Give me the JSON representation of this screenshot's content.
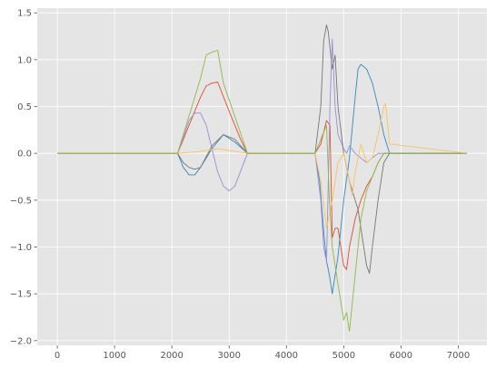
{
  "chart_data": {
    "type": "line",
    "title": "",
    "xlabel": "",
    "ylabel": "",
    "xlim": [
      -350,
      7500
    ],
    "ylim": [
      -2.05,
      1.55
    ],
    "xticks": [
      0,
      1000,
      2000,
      3000,
      4000,
      5000,
      6000,
      7000
    ],
    "yticks": [
      1.5,
      1.0,
      0.5,
      0.0,
      -0.5,
      -1.0,
      -1.5,
      -2.0
    ],
    "xtick_labels": [
      "0",
      "1000",
      "2000",
      "3000",
      "4000",
      "5000",
      "6000",
      "7000"
    ],
    "ytick_labels": [
      "1.5",
      "1.0",
      "0.5",
      "0.0",
      "−0.5",
      "−1.0",
      "−1.5",
      "−2.0"
    ],
    "grid": true,
    "style": {
      "background": "#e5e5e5",
      "grid_color": "#ffffff",
      "tick_color": "#555555"
    },
    "series": [
      {
        "color": "#e24a33",
        "x": [
          0,
          2100,
          2300,
          2500,
          2600,
          2700,
          2800,
          3000,
          3200,
          3320,
          4500,
          4600,
          4700,
          4760,
          4800,
          4850,
          4900,
          5000,
          5050,
          5100,
          5200,
          5300,
          5400,
          5500,
          5600,
          5700,
          5800,
          7150
        ],
        "y": [
          0,
          0,
          0.3,
          0.6,
          0.72,
          0.75,
          0.76,
          0.45,
          0.15,
          0,
          0,
          0.1,
          0.35,
          0.3,
          -0.9,
          -0.8,
          -0.8,
          -1.2,
          -1.24,
          -1.0,
          -0.7,
          -0.5,
          -0.35,
          -0.25,
          -0.1,
          0,
          0,
          0
        ]
      },
      {
        "color": "#348abd",
        "x": [
          0,
          2100,
          2200,
          2300,
          2400,
          2500,
          2700,
          2900,
          3100,
          3320,
          4500,
          4580,
          4620,
          4660,
          4700,
          4750,
          4800,
          4900,
          5000,
          5100,
          5200,
          5250,
          5300,
          5400,
          5500,
          5600,
          5700,
          5800,
          7150
        ],
        "y": [
          0,
          0,
          -0.15,
          -0.23,
          -0.23,
          -0.15,
          0.05,
          0.2,
          0.12,
          0,
          0,
          -0.3,
          -0.6,
          -0.9,
          -1.15,
          -1.3,
          -1.5,
          -1.1,
          -0.5,
          -0.05,
          0.6,
          0.9,
          0.95,
          0.9,
          0.75,
          0.5,
          0.2,
          0,
          0
        ]
      },
      {
        "color": "#988ed5",
        "x": [
          0,
          2100,
          2300,
          2400,
          2500,
          2600,
          2700,
          2800,
          2900,
          3000,
          3100,
          3320,
          4500,
          4600,
          4650,
          4700,
          4760,
          4800,
          4850,
          4900,
          5000,
          5050,
          5100,
          5200,
          5300,
          5400,
          5500,
          5600,
          7150
        ],
        "y": [
          0,
          0,
          0.35,
          0.43,
          0.43,
          0.3,
          0.05,
          -0.2,
          -0.35,
          -0.4,
          -0.35,
          0,
          0,
          -0.5,
          -1.0,
          -1.15,
          0.5,
          1.22,
          0.5,
          0.2,
          0.05,
          0.0,
          0.08,
          0.0,
          -0.05,
          -0.1,
          -0.05,
          0,
          0
        ]
      },
      {
        "color": "#777777",
        "x": [
          0,
          2100,
          2200,
          2300,
          2400,
          2500,
          2700,
          2900,
          3100,
          3320,
          4500,
          4600,
          4650,
          4700,
          4730,
          4800,
          4850,
          4900,
          5000,
          5100,
          5200,
          5250,
          5300,
          5400,
          5450,
          5500,
          5600,
          5700,
          5800,
          7150
        ],
        "y": [
          0,
          0,
          -0.1,
          -0.15,
          -0.17,
          -0.15,
          0.08,
          0.2,
          0.15,
          0,
          0,
          0.5,
          1.2,
          1.37,
          1.3,
          0.9,
          1.05,
          0.5,
          0.0,
          -0.3,
          -0.5,
          -0.6,
          -0.8,
          -1.2,
          -1.28,
          -1.0,
          -0.5,
          -0.1,
          0,
          0
        ]
      },
      {
        "color": "#fbc15e",
        "x": [
          0,
          2100,
          2500,
          2800,
          3000,
          3320,
          4500,
          4600,
          4700,
          4800,
          4900,
          5000,
          5100,
          5150,
          5200,
          5300,
          5400,
          5500,
          5600,
          5700,
          5730,
          5800,
          7150
        ],
        "y": [
          0,
          0,
          0.02,
          0.05,
          0.03,
          0,
          0,
          -0.3,
          -0.8,
          -0.5,
          -0.1,
          0.0,
          -0.3,
          -0.45,
          -0.2,
          0.1,
          -0.1,
          -0.05,
          0.2,
          0.5,
          0.53,
          0.1,
          0
        ]
      },
      {
        "color": "#8eba42",
        "x": [
          0,
          2100,
          2300,
          2500,
          2600,
          2700,
          2800,
          2900,
          3320,
          4500,
          4600,
          4700,
          4750,
          4800,
          4900,
          5000,
          5050,
          5100,
          5200,
          5300,
          5400,
          5500,
          5600,
          5700,
          5800,
          7150
        ],
        "y": [
          0,
          0,
          0.4,
          0.8,
          1.05,
          1.08,
          1.1,
          0.75,
          0,
          0,
          0.15,
          0.3,
          -0.5,
          -1.0,
          -1.4,
          -1.78,
          -1.7,
          -1.9,
          -1.3,
          -0.7,
          -0.4,
          -0.25,
          -0.1,
          0,
          0,
          0
        ]
      }
    ]
  }
}
